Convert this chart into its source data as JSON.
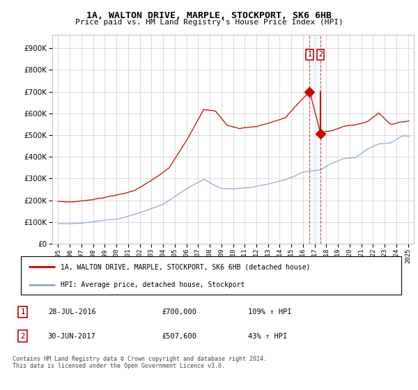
{
  "title": "1A, WALTON DRIVE, MARPLE, STOCKPORT, SK6 6HB",
  "subtitle": "Price paid vs. HM Land Registry's House Price Index (HPI)",
  "ytick_values": [
    0,
    100000,
    200000,
    300000,
    400000,
    500000,
    600000,
    700000,
    800000,
    900000
  ],
  "ylim": [
    0,
    960000
  ],
  "xlim_start": 1994.5,
  "xlim_end": 2025.5,
  "sale1_date": 2016.57,
  "sale1_price": 700000,
  "sale2_date": 2017.5,
  "sale2_price": 507600,
  "red_line_color": "#cc0000",
  "blue_line_color": "#88aacc",
  "vline_color": "#cc0000",
  "shade_color": "#ddeeff",
  "legend_label_red": "1A, WALTON DRIVE, MARPLE, STOCKPORT, SK6 6HB (detached house)",
  "legend_label_blue": "HPI: Average price, detached house, Stockport",
  "footnote": "Contains HM Land Registry data © Crown copyright and database right 2024.\nThis data is licensed under the Open Government Licence v3.0.",
  "background_color": "#ffffff",
  "grid_color": "#cccccc"
}
